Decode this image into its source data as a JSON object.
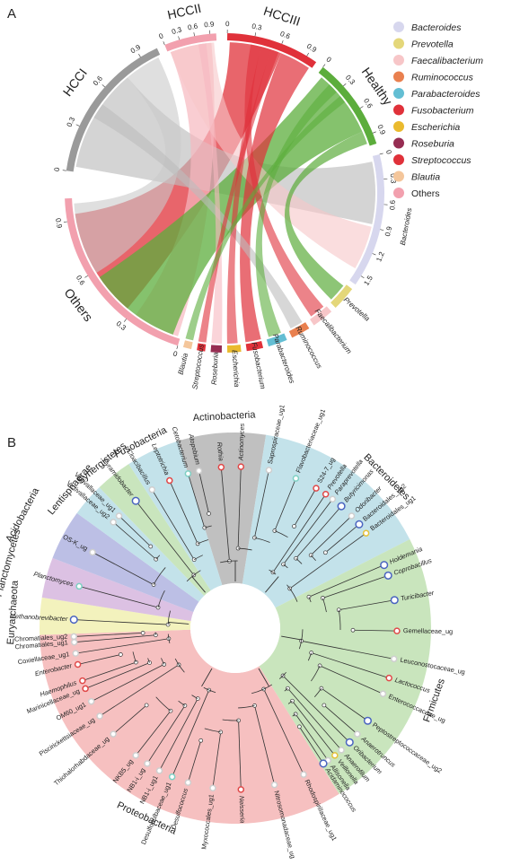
{
  "panel_a": {
    "label": "A",
    "groups": [
      {
        "name": "HCCI",
        "color": "#9a9a9a",
        "ticks": [
          "0",
          "0.3",
          "0.6",
          "0.9"
        ]
      },
      {
        "name": "HCCII",
        "color": "#f2a0ae",
        "ticks": [
          "0",
          "0.3",
          "0.6",
          "0.9"
        ]
      },
      {
        "name": "HCCIII",
        "color": "#e0313a",
        "ticks": [
          "0",
          "0.3",
          "0.6",
          "0.9"
        ]
      },
      {
        "name": "Healthy",
        "color": "#5cad3c",
        "ticks": [
          "0",
          "0.3",
          "0.6",
          "0.9"
        ]
      },
      {
        "name": "Bacteroides",
        "color": "#d7d7ee",
        "ticks": [
          "0",
          "0.3",
          "0.6",
          "0.9",
          "1.2",
          "1.5"
        ]
      },
      {
        "name": "Prevotella",
        "color": "#e4d77a",
        "ticks": []
      },
      {
        "name": "Faecalibacterium",
        "color": "#f7c6c8",
        "ticks": []
      },
      {
        "name": "Ruminococcus",
        "color": "#e9804f",
        "ticks": []
      },
      {
        "name": "Parabacteroides",
        "color": "#63bed3",
        "ticks": []
      },
      {
        "name": "Fusobacterium",
        "color": "#e0313a",
        "ticks": []
      },
      {
        "name": "Escherichia",
        "color": "#eaba2e",
        "ticks": []
      },
      {
        "name": "Roseburia",
        "color": "#962d52",
        "ticks": []
      },
      {
        "name": "Streptococcus",
        "color": "#e0313a",
        "ticks": []
      },
      {
        "name": "Blautia",
        "color": "#f4c69b",
        "ticks": []
      },
      {
        "name": "Others",
        "color": "#f2a0ae",
        "ticks": [
          "0",
          "0.3",
          "0.6",
          "0.9"
        ]
      }
    ],
    "legend": [
      {
        "name": "Bacteroides",
        "color": "#d7d7ee"
      },
      {
        "name": "Prevotella",
        "color": "#e4d77a"
      },
      {
        "name": "Faecalibacterium",
        "color": "#f7c6c8"
      },
      {
        "name": "Ruminococcus",
        "color": "#e9804f"
      },
      {
        "name": "Parabacteroides",
        "color": "#63bed3"
      },
      {
        "name": "Fusobacterium",
        "color": "#e0313a"
      },
      {
        "name": "Escherichia",
        "color": "#eaba2e"
      },
      {
        "name": "Roseburia",
        "color": "#962d52"
      },
      {
        "name": "Streptococcus",
        "color": "#e0313a"
      },
      {
        "name": "Blautia",
        "color": "#f4c69b"
      },
      {
        "name": "Others",
        "color": "#f2a0ae"
      }
    ]
  },
  "panel_b": {
    "label": "B",
    "phyla": [
      {
        "name": "Actinobacteria",
        "color": "#b5b5b5"
      },
      {
        "name": "Bacteroidetes",
        "color": "#b9dde6"
      },
      {
        "name": "Firmicutes",
        "color": "#bfe0b2"
      },
      {
        "name": "Proteobacteria",
        "color": "#f4b5b5"
      },
      {
        "name": "Euryarchaeota",
        "color": "#f1f0b2"
      },
      {
        "name": "Planctomycetes",
        "color": "#d6b6de"
      },
      {
        "name": "Acidobacteria",
        "color": "#b0b4e0"
      },
      {
        "name": "Lentisphaerae",
        "color": "#b9dde6"
      },
      {
        "name": "Synergistetes",
        "color": "#bfe0b2"
      },
      {
        "name": "Fusobacteria",
        "color": "#b9dde6"
      }
    ],
    "leaves": [
      {
        "name": "Methanobrevibacter",
        "color": "#4a64c0",
        "ital": true
      },
      {
        "name": "Planctomyces",
        "color": "#7fd0c4",
        "ital": true
      },
      {
        "name": "OS-K_ug",
        "color": "#cfcfcf",
        "ital": false
      },
      {
        "name": "Victivallaceae_ug2",
        "color": "#cfcfcf",
        "ital": false
      },
      {
        "name": "Victivallaceae_ug1",
        "color": "#cfcfcf",
        "ital": false
      },
      {
        "name": "Pyramidobacter",
        "color": "#4a64c0",
        "ital": true
      },
      {
        "name": "Cloacibacillus",
        "color": "#cfcfcf",
        "ital": true
      },
      {
        "name": "Leptotrichia",
        "color": "#e04848",
        "ital": true
      },
      {
        "name": "Cetobacterium",
        "color": "#7fd0c4",
        "ital": true
      },
      {
        "name": "Atopobium",
        "color": "#cfcfcf",
        "ital": true
      },
      {
        "name": "Rothia",
        "color": "#e04848",
        "ital": true
      },
      {
        "name": "Actinomyces",
        "color": "#e04848",
        "ital": true
      },
      {
        "name": "Saprospiraceae_ug1",
        "color": "#cfcfcf",
        "ital": false
      },
      {
        "name": "Flavobacteriaceae_ug1",
        "color": "#7fd0c4",
        "ital": false
      },
      {
        "name": "S24-7_ug",
        "color": "#e04848",
        "ital": false
      },
      {
        "name": "Prevotella",
        "color": "#e04848",
        "ital": true
      },
      {
        "name": "Paraprevotella",
        "color": "#cfcfcf",
        "ital": true
      },
      {
        "name": "Butyricimonas",
        "color": "#4a64c0",
        "ital": true
      },
      {
        "name": "Odoribacter",
        "color": "#cfcfcf",
        "ital": true
      },
      {
        "name": "Bacteroidales_ug2",
        "color": "#4a64c0",
        "ital": false
      },
      {
        "name": "Bacteroidales_ug1",
        "color": "#e6c23a",
        "ital": false
      },
      {
        "name": "Holdemania",
        "color": "#4a64c0",
        "ital": true
      },
      {
        "name": "Coprobacillus",
        "color": "#4a64c0",
        "ital": true
      },
      {
        "name": "Turicibacter",
        "color": "#4a64c0",
        "ital": true
      },
      {
        "name": "Gemellaceae_ug",
        "color": "#e04848",
        "ital": false
      },
      {
        "name": "Leuconostocaceae_ug",
        "color": "#cfcfcf",
        "ital": false
      },
      {
        "name": "Lactococcus",
        "color": "#e04848",
        "ital": true
      },
      {
        "name": "Enterococcaceae_ug",
        "color": "#cfcfcf",
        "ital": false
      },
      {
        "name": "Peptostreptococcaceae_ug2",
        "color": "#4a64c0",
        "ital": false
      },
      {
        "name": "Anaerotruncus",
        "color": "#cfcfcf",
        "ital": true
      },
      {
        "name": "Oribacterium",
        "color": "#4a64c0",
        "ital": true
      },
      {
        "name": "Anaerofilum",
        "color": "#cfcfcf",
        "ital": true
      },
      {
        "name": "Veillonella",
        "color": "#e6c23a",
        "ital": true
      },
      {
        "name": "Allisonella",
        "color": "#cfcfcf",
        "ital": true
      },
      {
        "name": "Acidaminococcus",
        "color": "#4a64c0",
        "ital": true
      },
      {
        "name": "Rhodospirillaceae_ug1",
        "color": "#cfcfcf",
        "ital": false
      },
      {
        "name": "Nitrosomonadaceae_ug",
        "color": "#cfcfcf",
        "ital": false
      },
      {
        "name": "Neisseria",
        "color": "#e04848",
        "ital": true
      },
      {
        "name": "Myxococcales_ug1",
        "color": "#cfcfcf",
        "ital": false
      },
      {
        "name": "Desulfococcus",
        "color": "#cfcfcf",
        "ital": true
      },
      {
        "name": "Desulfobulbaceae_ug1",
        "color": "#7fd0c4",
        "ital": false
      },
      {
        "name": "NB1-i_ug1",
        "color": "#cfcfcf",
        "ital": false
      },
      {
        "name": "NB1-i_ug",
        "color": "#cfcfcf",
        "ital": false
      },
      {
        "name": "NKB5_ug",
        "color": "#cfcfcf",
        "ital": false
      },
      {
        "name": "Thiohalorhabdaceae_ug",
        "color": "#cfcfcf",
        "ital": false
      },
      {
        "name": "Piscirickettsiaceae_ug",
        "color": "#cfcfcf",
        "ital": false
      },
      {
        "name": "OM60_ug1",
        "color": "#cfcfcf",
        "ital": false
      },
      {
        "name": "Marinicellaceae_ug",
        "color": "#e04848",
        "ital": false
      },
      {
        "name": "Haemophilus",
        "color": "#e04848",
        "ital": true
      },
      {
        "name": "Enterobacter",
        "color": "#e04848",
        "ital": true
      },
      {
        "name": "Coxiellaceae_ug1",
        "color": "#cfcfcf",
        "ital": false
      },
      {
        "name": "Chromatiales_ug1",
        "color": "#cfcfcf",
        "ital": false
      },
      {
        "name": "Chromatiales_ug2",
        "color": "#cfcfcf",
        "ital": false
      }
    ]
  }
}
